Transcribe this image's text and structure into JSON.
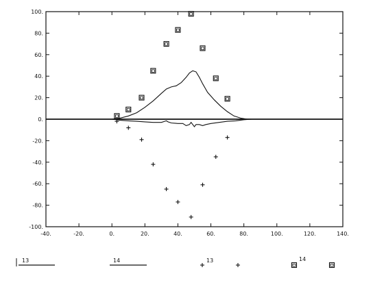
{
  "chart_data": {
    "type": "scatter",
    "xlim": [
      -40,
      140
    ],
    "ylim": [
      -100,
      100
    ],
    "x_ticks": [
      -40,
      -20,
      0,
      20,
      40,
      60,
      80,
      100,
      120,
      140
    ],
    "x_tick_labels": [
      "-40.",
      "-20.",
      "0.",
      "20.",
      "40.",
      "60.",
      "80.",
      "100.",
      "120.",
      "140."
    ],
    "y_ticks": [
      100,
      80,
      60,
      40,
      20,
      0,
      -20,
      -40,
      -60,
      -80,
      -100
    ],
    "y_tick_labels": [
      "100.",
      "80.",
      "60.",
      "40.",
      "20.",
      "0.",
      "-20.",
      "-40.",
      "-60.",
      "-80.",
      "-100."
    ],
    "grid": false,
    "legend_position": "bottom",
    "series": [
      {
        "name": "13",
        "kind": "line",
        "style": "solid",
        "x": [
          -40,
          0,
          5,
          10,
          15,
          20,
          25,
          30,
          33,
          36,
          39,
          42,
          45,
          47,
          49,
          51,
          53,
          55,
          58,
          62,
          66,
          70,
          74,
          78,
          82,
          85,
          140
        ],
        "y": [
          0,
          0,
          1,
          3,
          6,
          11,
          17,
          24,
          28,
          30,
          31,
          34,
          39,
          43,
          45,
          44,
          39,
          33,
          25,
          18,
          12,
          7,
          3,
          1,
          0,
          0,
          0
        ]
      },
      {
        "name": "14",
        "kind": "line",
        "style": "solid",
        "x": [
          -40,
          0,
          5,
          10,
          15,
          20,
          25,
          30,
          32,
          33,
          34,
          36,
          40,
          43,
          45,
          47,
          48,
          49,
          50,
          51,
          53,
          55,
          57,
          60,
          65,
          70,
          75,
          80,
          85,
          140
        ],
        "y": [
          0,
          0,
          -1,
          -1.5,
          -2,
          -2.5,
          -3,
          -3,
          -2,
          -1.5,
          -2.5,
          -3.5,
          -4,
          -4,
          -6,
          -5,
          -3,
          -5,
          -7,
          -5,
          -5,
          -6,
          -5,
          -4,
          -3,
          -2,
          -1.5,
          -0.5,
          0,
          0
        ]
      },
      {
        "name": "13",
        "kind": "marker",
        "marker": "plus",
        "x": [
          3,
          10,
          18,
          25,
          33,
          40,
          48,
          55,
          63,
          70
        ],
        "y": [
          -2,
          -8,
          -19,
          -42,
          -65,
          -77,
          -91,
          -61,
          -35,
          -17
        ]
      },
      {
        "name": "14",
        "kind": "marker",
        "marker": "square",
        "x": [
          3,
          10,
          18,
          25,
          33,
          40,
          48,
          55,
          63,
          70
        ],
        "y": [
          3,
          9,
          20,
          45,
          70,
          83,
          98,
          66,
          38,
          19
        ]
      }
    ],
    "legend": {
      "items": [
        {
          "label": "13",
          "kind": "line"
        },
        {
          "label": "14",
          "kind": "line"
        },
        {
          "label": "13",
          "kind": "plus"
        },
        {
          "label": "14",
          "kind": "square"
        }
      ]
    }
  }
}
